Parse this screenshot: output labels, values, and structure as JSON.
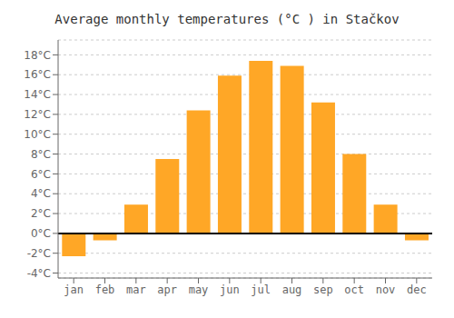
{
  "chart_data": {
    "type": "bar",
    "title": "Average monthly temperatures (°C ) in Stačkov",
    "categories": [
      "jan",
      "feb",
      "mar",
      "apr",
      "may",
      "jun",
      "jul",
      "aug",
      "sep",
      "oct",
      "nov",
      "dec"
    ],
    "values": [
      -2.3,
      -0.7,
      2.9,
      7.5,
      12.4,
      15.9,
      17.4,
      16.9,
      13.2,
      8.0,
      2.9,
      -0.7
    ],
    "color": "#FFA726",
    "ylim": [
      -4.5,
      19.5
    ],
    "yticks": [
      {
        "value": -4,
        "label": "-4°C"
      },
      {
        "value": -2,
        "label": "-2°C"
      },
      {
        "value": 0,
        "label": "0°C"
      },
      {
        "value": 2,
        "label": "2°C"
      },
      {
        "value": 4,
        "label": "4°C"
      },
      {
        "value": 6,
        "label": "6°C"
      },
      {
        "value": 8,
        "label": "8°C"
      },
      {
        "value": 10,
        "label": "10°C"
      },
      {
        "value": 12,
        "label": "12°C"
      },
      {
        "value": 14,
        "label": "14°C"
      },
      {
        "value": 16,
        "label": "16°C"
      },
      {
        "value": 18,
        "label": "18°C"
      }
    ],
    "grid": true
  }
}
